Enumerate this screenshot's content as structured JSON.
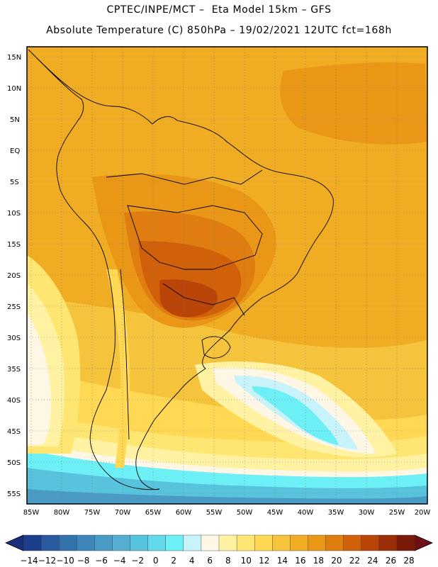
{
  "header": {
    "line1": "CPTEC/INPE/MCT –  Eta Model 15km – GFS",
    "line2": "Absolute Temperature (C) 850hPa – 19/02/2021 12UTC fct=168h"
  },
  "axes": {
    "lat_labels": [
      "15N",
      "10N",
      "5N",
      "EQ",
      "5S",
      "10S",
      "15S",
      "20S",
      "25S",
      "30S",
      "35S",
      "40S",
      "45S",
      "50S",
      "55S"
    ],
    "lon_labels": [
      "85W",
      "80W",
      "75W",
      "70W",
      "65W",
      "60W",
      "55W",
      "50W",
      "45W",
      "40W",
      "35W",
      "30W",
      "25W",
      "20W"
    ]
  },
  "colorbar": {
    "labels": [
      "-14",
      "-12",
      "-10",
      "-8",
      "-6",
      "-4",
      "-2",
      "0",
      "2",
      "4",
      "6",
      "8",
      "10",
      "12",
      "14",
      "16",
      "18",
      "20",
      "22",
      "24",
      "26",
      "28"
    ],
    "colors": [
      "#1c3f8c",
      "#2a5b9e",
      "#3472ad",
      "#3f86bb",
      "#4a9ac6",
      "#55aed1",
      "#58c3dd",
      "#62d8ea",
      "#6df0f5",
      "#c9f3fb",
      "#fff7e6",
      "#fff3a3",
      "#ffe673",
      "#ffd954",
      "#f6c33c",
      "#f0ad24",
      "#ea9718",
      "#e07d10",
      "#d1600a",
      "#b94508",
      "#9b2d08",
      "#7a1b0a"
    ],
    "low_end_color": "#1a2f7a",
    "high_end_color": "#6d0f14"
  }
}
